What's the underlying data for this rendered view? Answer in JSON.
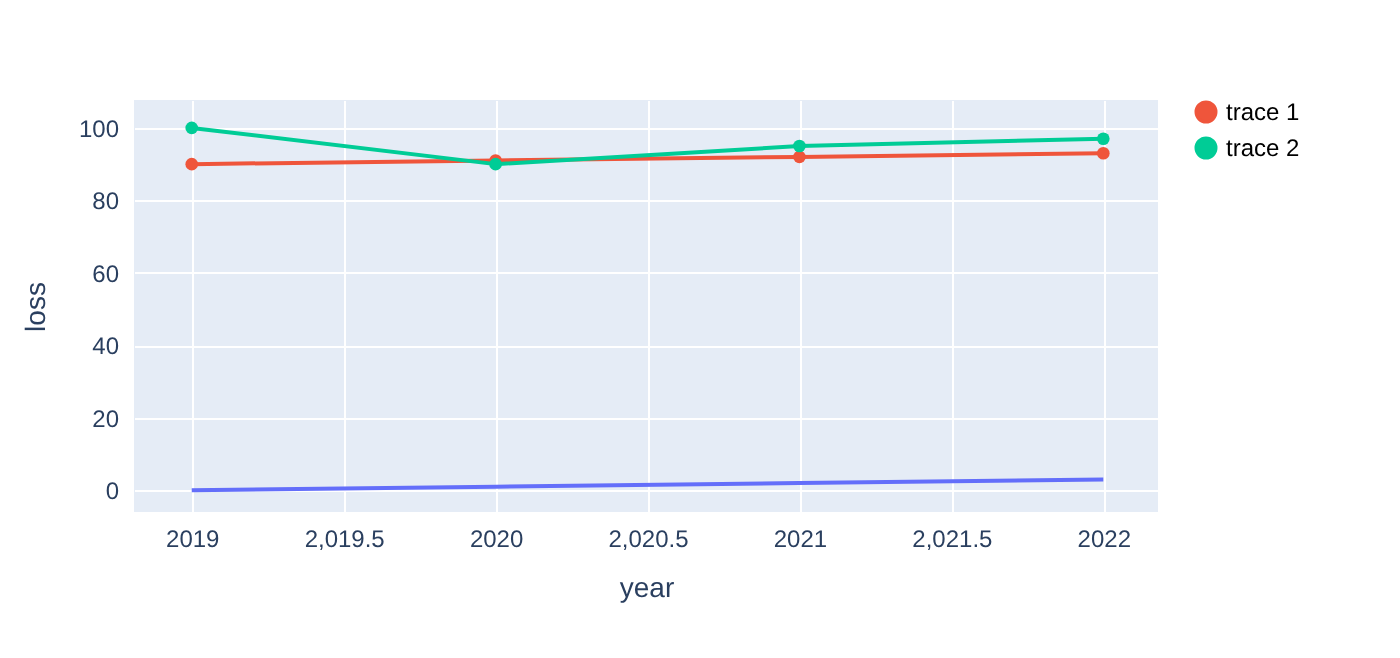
{
  "chart_data": {
    "type": "line",
    "xlabel": "year",
    "ylabel": "loss",
    "x": [
      2019,
      2020,
      2021,
      2022
    ],
    "series": [
      {
        "color": "#636efa",
        "values": [
          0,
          1,
          2,
          3
        ],
        "marker": "none"
      },
      {
        "name": "trace 1",
        "color": "#ef553b",
        "values": [
          90,
          91,
          92,
          93
        ],
        "marker": "circle"
      },
      {
        "name": "trace 2",
        "color": "#00cc96",
        "values": [
          100,
          90,
          95,
          97
        ],
        "marker": "circle"
      }
    ],
    "xlim": [
      2018.81,
      2022.18
    ],
    "xticks": [
      2019,
      {
        "value": 2019.5,
        "label": "2,019.5"
      },
      2020,
      {
        "value": 2020.5,
        "label": "2,020.5"
      },
      2021,
      {
        "value": 2021.5,
        "label": "2,021.5"
      },
      2022
    ],
    "ylim": [
      -6,
      107.7
    ],
    "yticks": [
      0,
      20,
      40,
      60,
      80,
      100
    ],
    "grid": true,
    "legend": "top right",
    "line_style": "solid"
  }
}
